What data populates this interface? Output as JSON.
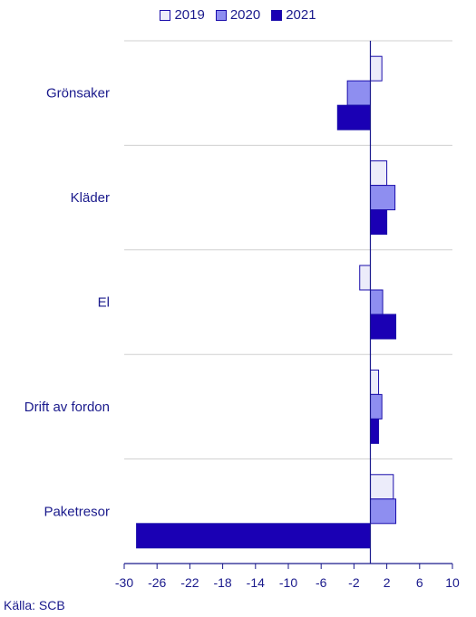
{
  "chart_data": {
    "type": "bar",
    "orientation": "horizontal",
    "categories": [
      "Grönsaker",
      "Kläder",
      "El",
      "Drift av fordon",
      "Paketresor"
    ],
    "series": [
      {
        "name": "2019",
        "color": "#ececfa",
        "values": [
          1.4,
          2.0,
          -1.3,
          1.0,
          2.8
        ]
      },
      {
        "name": "2020",
        "color": "#8e8ef0",
        "values": [
          -2.8,
          3.0,
          1.5,
          1.4,
          3.1
        ]
      },
      {
        "name": "2021",
        "color": "#1a00b4",
        "values": [
          -4.0,
          2.0,
          3.1,
          1.0,
          -28.5
        ]
      }
    ],
    "xlim": [
      -30,
      10
    ],
    "xticks": [
      -30,
      -26,
      -22,
      -18,
      -14,
      -10,
      -6,
      -2,
      2,
      6,
      10
    ],
    "legend_position": "top-center",
    "grid": true
  },
  "source": "Källa: SCB"
}
